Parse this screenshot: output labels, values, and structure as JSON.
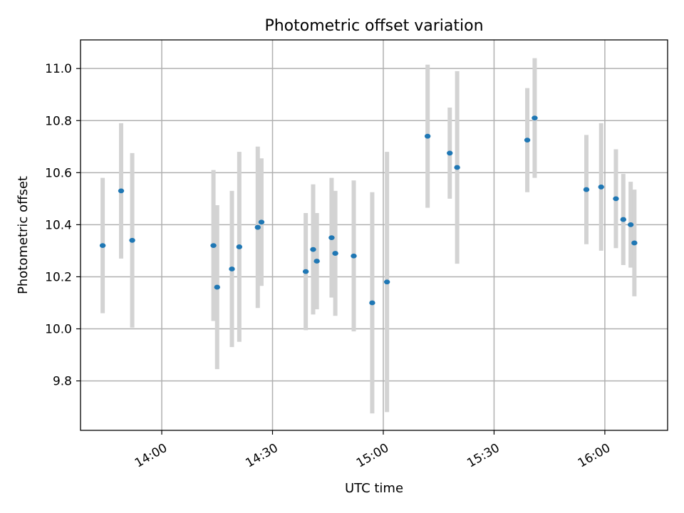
{
  "chart_data": {
    "type": "scatter",
    "title": "Photometric offset variation",
    "xlabel": "UTC time",
    "ylabel": "Photometric offset",
    "x_tick_labels": [
      "14:00",
      "14:30",
      "15:00",
      "15:30",
      "16:00"
    ],
    "x_ticks": [
      "14:00",
      "14:30",
      "15:00",
      "15:30",
      "16:00"
    ],
    "y_ticks": [
      9.8,
      10.0,
      10.2,
      10.4,
      10.6,
      10.8,
      11.0
    ],
    "y_tick_labels": [
      "9.8",
      "10.0",
      "10.2",
      "10.4",
      "10.6",
      "10.8",
      "11.0"
    ],
    "xlim": [
      "13:38",
      "16:17"
    ],
    "ylim": [
      9.61,
      11.11
    ],
    "grid": true,
    "colors": {
      "point": "#1f77b4",
      "errorbar": "#d3d3d3"
    },
    "points": [
      {
        "x": "13:44",
        "y": 10.32,
        "err": 0.26
      },
      {
        "x": "13:49",
        "y": 10.53,
        "err": 0.26
      },
      {
        "x": "13:52",
        "y": 10.34,
        "err": 0.335
      },
      {
        "x": "14:14",
        "y": 10.32,
        "err": 0.29
      },
      {
        "x": "14:15",
        "y": 10.16,
        "err": 0.315
      },
      {
        "x": "14:19",
        "y": 10.23,
        "err": 0.3
      },
      {
        "x": "14:21",
        "y": 10.315,
        "err": 0.365
      },
      {
        "x": "14:26",
        "y": 10.39,
        "err": 0.31
      },
      {
        "x": "14:27",
        "y": 10.41,
        "err": 0.245
      },
      {
        "x": "14:39",
        "y": 10.22,
        "err": 0.225
      },
      {
        "x": "14:41",
        "y": 10.305,
        "err": 0.25
      },
      {
        "x": "14:42",
        "y": 10.26,
        "err": 0.185
      },
      {
        "x": "14:46",
        "y": 10.35,
        "err": 0.23
      },
      {
        "x": "14:47",
        "y": 10.29,
        "err": 0.24
      },
      {
        "x": "14:52",
        "y": 10.28,
        "err": 0.29
      },
      {
        "x": "14:57",
        "y": 10.1,
        "err": 0.425
      },
      {
        "x": "15:01",
        "y": 10.18,
        "err": 0.5
      },
      {
        "x": "15:12",
        "y": 10.74,
        "err": 0.275
      },
      {
        "x": "15:18",
        "y": 10.675,
        "err": 0.175
      },
      {
        "x": "15:20",
        "y": 10.62,
        "err": 0.37
      },
      {
        "x": "15:39",
        "y": 10.725,
        "err": 0.2
      },
      {
        "x": "15:41",
        "y": 10.81,
        "err": 0.23
      },
      {
        "x": "15:55",
        "y": 10.535,
        "err": 0.21
      },
      {
        "x": "15:59",
        "y": 10.545,
        "err": 0.245
      },
      {
        "x": "16:03",
        "y": 10.5,
        "err": 0.19
      },
      {
        "x": "16:05",
        "y": 10.42,
        "err": 0.175
      },
      {
        "x": "16:07",
        "y": 10.4,
        "err": 0.165
      },
      {
        "x": "16:08",
        "y": 10.33,
        "err": 0.205
      }
    ]
  }
}
